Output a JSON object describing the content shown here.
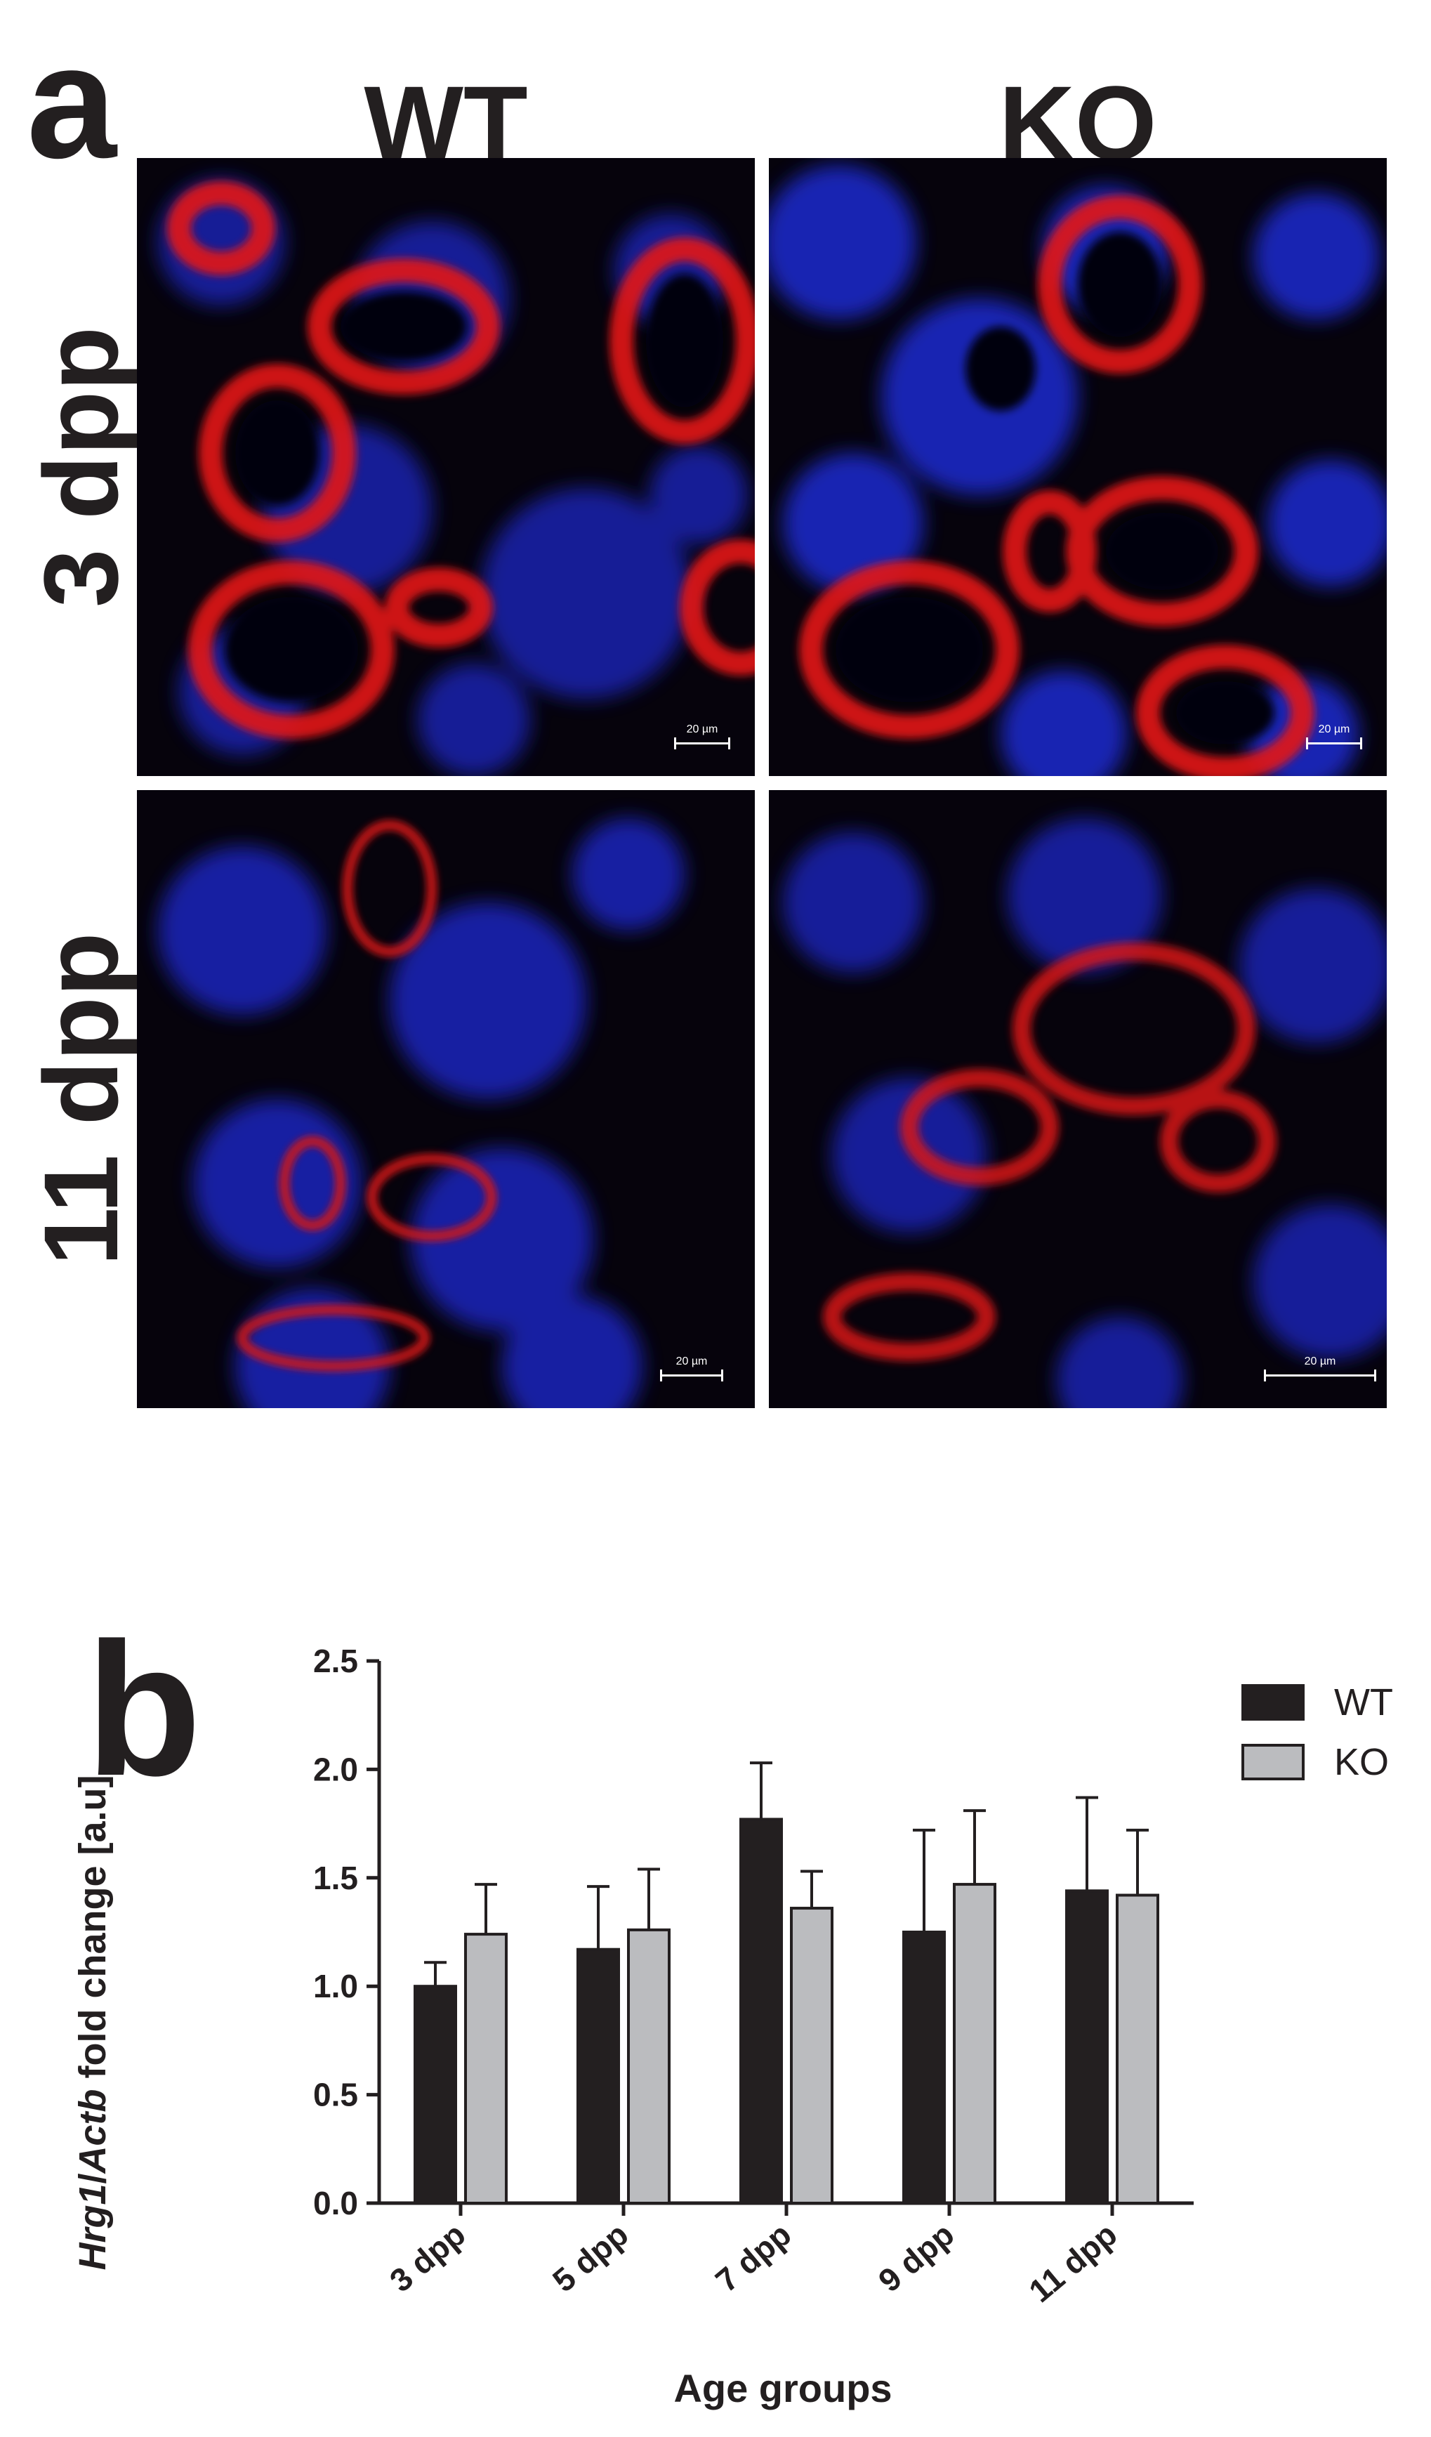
{
  "figure": {
    "panel_a_letter": "a",
    "panel_b_letter": "b",
    "columns": [
      "WT",
      "KO"
    ],
    "rows": [
      "3 dpp",
      "11 dpp"
    ],
    "scale_bar_label": "20 µm",
    "colors": {
      "nuclei": "#1f2fd6",
      "signal": "#e01818",
      "background": "#050208"
    }
  },
  "chart_data": {
    "type": "bar",
    "categories": [
      "3 dpp",
      "5 dpp",
      "7 dpp",
      "9 dpp",
      "11 dpp"
    ],
    "series": [
      {
        "name": "WT",
        "values": [
          1.0,
          1.17,
          1.77,
          1.25,
          1.44
        ],
        "errors": [
          0.11,
          0.29,
          0.26,
          0.47,
          0.43
        ],
        "color": "#231f20"
      },
      {
        "name": "KO",
        "values": [
          1.24,
          1.26,
          1.36,
          1.47,
          1.42
        ],
        "errors": [
          0.23,
          0.28,
          0.17,
          0.34,
          0.3
        ],
        "color": "#bbbcbf"
      }
    ],
    "xlabel": "Age groups",
    "ylabel_parts": [
      "Hrg1",
      "/",
      "Actb",
      " fold change [a.u]"
    ],
    "yticks": [
      "0.0",
      "0.5",
      "1.0",
      "1.5",
      "2.0",
      "2.5"
    ],
    "ylim": [
      0,
      2.5
    ],
    "legend_position": "top-right",
    "error_bars": "upper"
  }
}
